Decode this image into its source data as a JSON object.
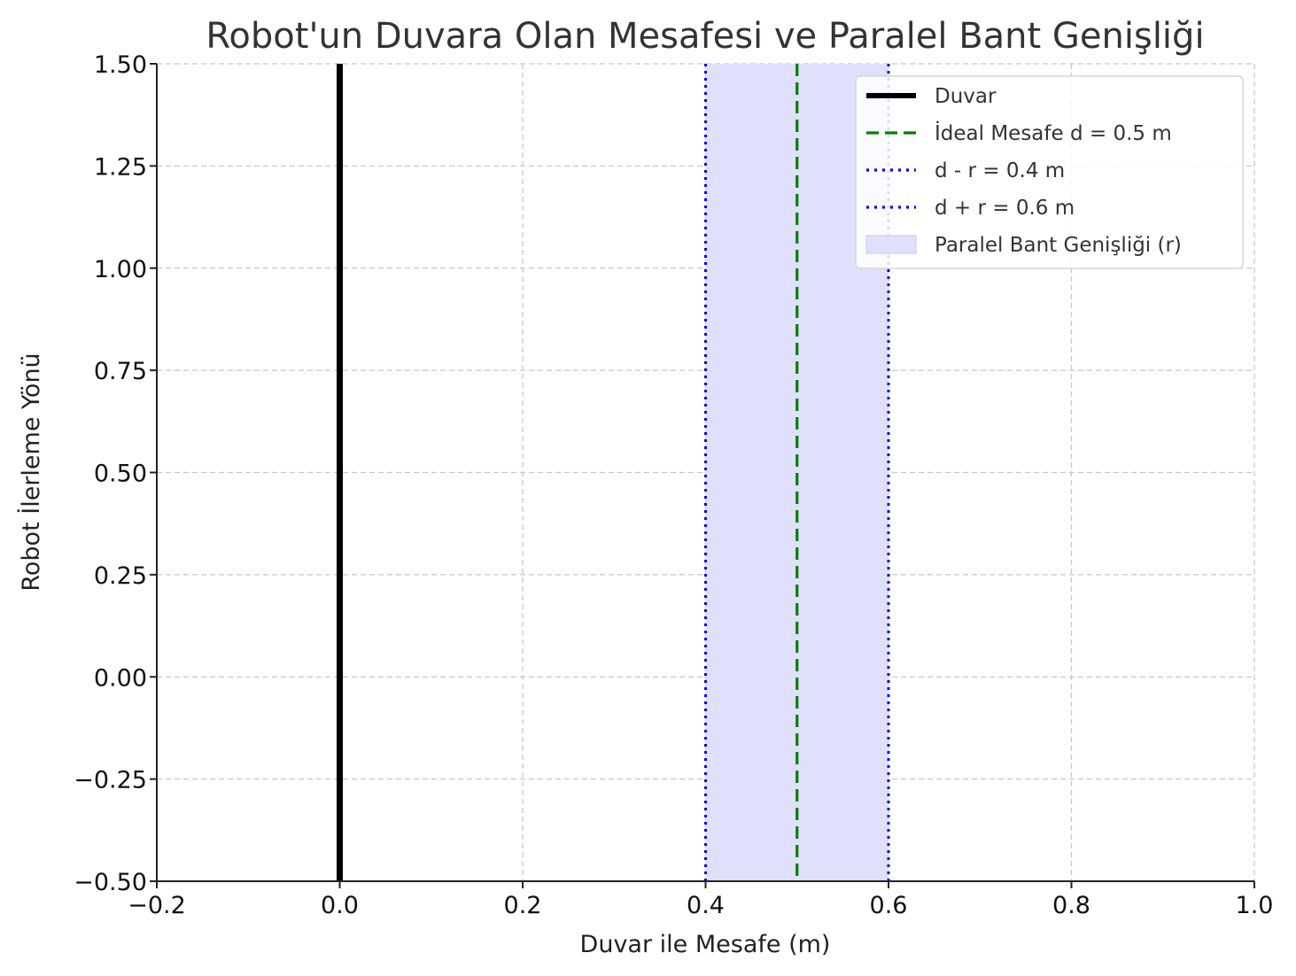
{
  "chart_data": {
    "type": "line",
    "title": "Robot'un Duvara Olan Mesafesi ve Paralel Bant Genişliği",
    "xlabel": "Duvar ile Mesafe (m)",
    "ylabel": "Robot İlerleme Yönü",
    "xlim": [
      -0.2,
      1.0
    ],
    "ylim": [
      -0.5,
      1.5
    ],
    "xticks": [
      -0.2,
      0.0,
      0.2,
      0.4,
      0.6,
      0.8,
      1.0
    ],
    "yticks": [
      -0.5,
      -0.25,
      0.0,
      0.25,
      0.5,
      0.75,
      1.0,
      1.25,
      1.5
    ],
    "xtick_labels": [
      "−0.2",
      "0.0",
      "0.2",
      "0.4",
      "0.6",
      "0.8",
      "1.0"
    ],
    "ytick_labels": [
      "−0.50",
      "−0.25",
      "0.00",
      "0.25",
      "0.50",
      "0.75",
      "1.00",
      "1.25",
      "1.50"
    ],
    "grid": true,
    "legend_position": "top-right",
    "series": [
      {
        "name": "Duvar",
        "kind": "vline",
        "x": 0.0,
        "color": "#000000",
        "style": "solid"
      },
      {
        "name": "İdeal Mesafe d = 0.5 m",
        "kind": "vline",
        "x": 0.5,
        "color": "#008000",
        "style": "dashed"
      },
      {
        "name": "d - r = 0.4 m",
        "kind": "vline",
        "x": 0.4,
        "color": "#0000ff",
        "style": "dotted"
      },
      {
        "name": "d + r = 0.6 m",
        "kind": "vline",
        "x": 0.6,
        "color": "#0000ff",
        "style": "dotted"
      },
      {
        "name": "Paralel Bant Genişliği (r)",
        "kind": "band",
        "x": [
          0.4,
          0.6
        ],
        "color": "#e0e0fc",
        "style": "fill"
      }
    ]
  }
}
